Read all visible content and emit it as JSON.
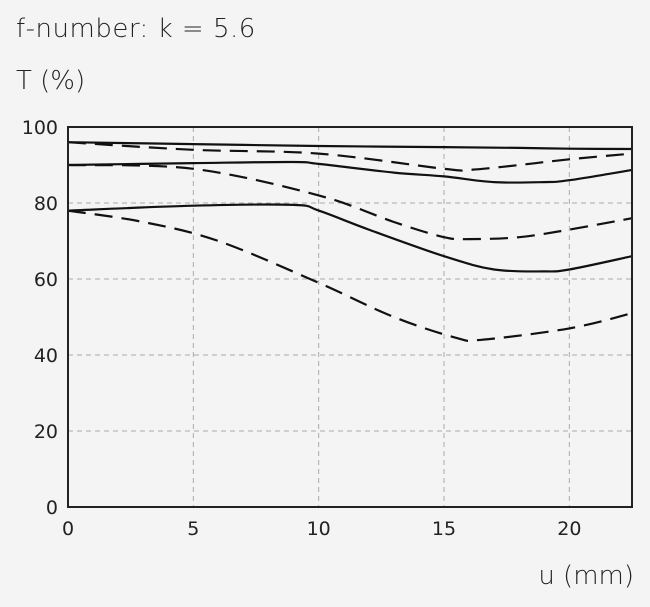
{
  "chart_data": {
    "type": "line",
    "title": "f-number: k = 5.6",
    "xlabel": "u (mm)",
    "ylabel": "T (%)",
    "xlim": [
      0,
      22.5
    ],
    "ylim": [
      0,
      100
    ],
    "xticks": [
      0,
      5,
      10,
      15,
      20
    ],
    "yticks": [
      0,
      20,
      40,
      60,
      80,
      100
    ],
    "grid": true,
    "series": [
      {
        "style": "solid",
        "x": [
          0,
          5,
          10,
          15,
          18,
          20,
          22.5
        ],
        "y": [
          96,
          95.5,
          95,
          94.7,
          94.5,
          94.3,
          94.2
        ]
      },
      {
        "style": "dashed",
        "x": [
          0,
          5,
          10,
          15,
          16,
          18,
          20,
          22.5
        ],
        "y": [
          96,
          94,
          93,
          89,
          88.7,
          90,
          91.5,
          93
        ]
      },
      {
        "style": "solid",
        "x": [
          0,
          5,
          9,
          10,
          13,
          15,
          17,
          19,
          20,
          22.5
        ],
        "y": [
          90,
          90.5,
          90.8,
          90.3,
          88,
          87,
          85.5,
          85.5,
          86,
          88.7
        ]
      },
      {
        "style": "dashed",
        "x": [
          0,
          5,
          10,
          13,
          15,
          16,
          18,
          20,
          22.5
        ],
        "y": [
          90,
          89,
          82,
          75,
          71,
          70.5,
          71,
          73,
          76
        ]
      },
      {
        "style": "solid",
        "x": [
          0,
          5,
          9,
          10,
          12,
          15,
          17,
          19,
          20,
          22.5
        ],
        "y": [
          78,
          79.3,
          79.5,
          78,
          73,
          66,
          62.5,
          62,
          62.5,
          66
        ]
      },
      {
        "style": "dashed",
        "x": [
          0,
          3,
          6,
          10,
          13,
          15.5,
          16.5,
          20,
          22.5
        ],
        "y": [
          78,
          75,
          70,
          59,
          50,
          44.5,
          44,
          47,
          51
        ]
      }
    ]
  }
}
